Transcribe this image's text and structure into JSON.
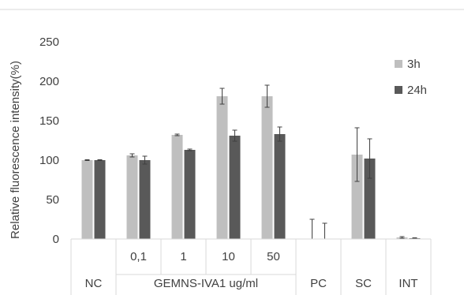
{
  "chart_data": {
    "type": "bar",
    "ylabel": "Relative fluorescence intensity(%)",
    "ylim": [
      0,
      250
    ],
    "yticks": [
      "0",
      "50",
      "100",
      "150",
      "200",
      "250"
    ],
    "grid": false,
    "legend_position": "top-right",
    "colors": {
      "3h": "#bfbfbf",
      "24h": "#595959",
      "axis": "#d9d9d9",
      "error": "#404040"
    },
    "categories": [
      {
        "label": "",
        "group": "NC"
      },
      {
        "label": "0,1",
        "group": "GEMNS-IVA1 ug/ml"
      },
      {
        "label": "1",
        "group": "GEMNS-IVA1 ug/ml"
      },
      {
        "label": "10",
        "group": "GEMNS-IVA1 ug/ml"
      },
      {
        "label": "50",
        "group": "GEMNS-IVA1 ug/ml"
      },
      {
        "label": "",
        "group": "PC"
      },
      {
        "label": "",
        "group": "SC"
      },
      {
        "label": "",
        "group": "INT"
      }
    ],
    "groups": [
      {
        "label": "NC"
      },
      {
        "label": "GEMNS-IVA1 ug/ml"
      },
      {
        "label": "PC"
      },
      {
        "label": "SC"
      },
      {
        "label": "INT"
      }
    ],
    "series": [
      {
        "name": "3h",
        "values": [
          100,
          106,
          132,
          181,
          181,
          0,
          107,
          2
        ],
        "errors": [
          0.5,
          2,
          1,
          10,
          14,
          25,
          34,
          1
        ]
      },
      {
        "name": "24h",
        "values": [
          100,
          100,
          113,
          131,
          133,
          0,
          102,
          1
        ],
        "errors": [
          0.5,
          5,
          1,
          7,
          9,
          20,
          25,
          0.5
        ]
      }
    ]
  }
}
